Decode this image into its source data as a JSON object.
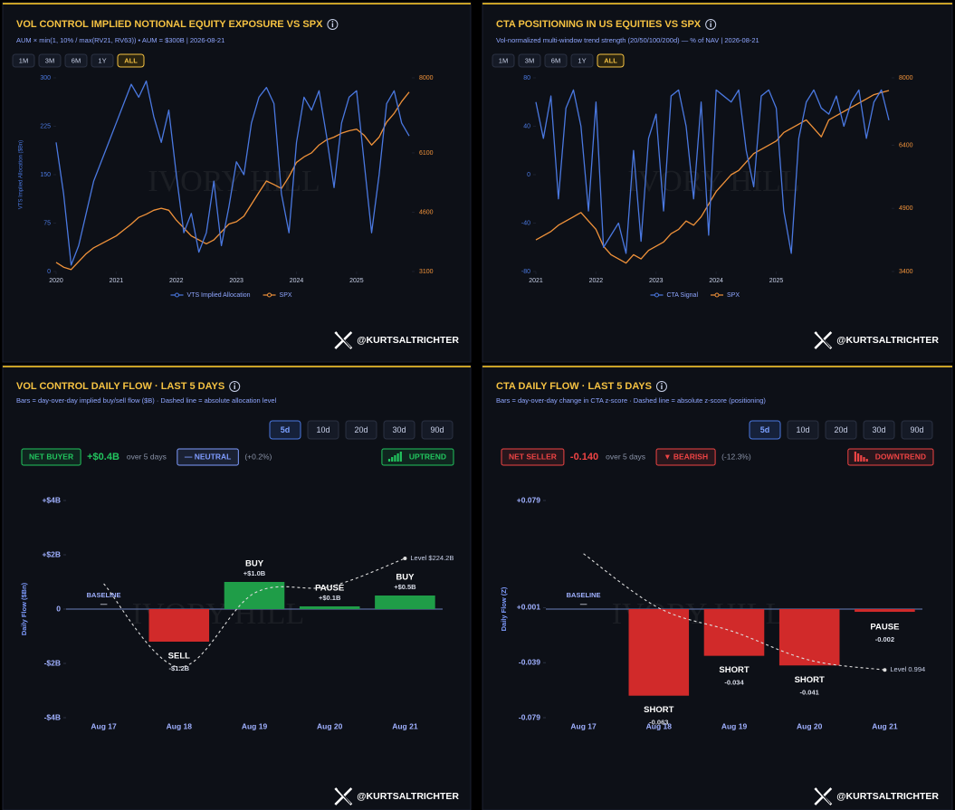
{
  "watermark": "IVORY HILL",
  "chart_data": [
    {
      "type": "line",
      "title": "VOL CONTROL IMPLIED NOTIONAL EQUITY EXPOSURE VS SPX",
      "subtitle": "AUM × min(1, 10% / max(RV21, RV63)) • AUM = $300B | 2026-08-21",
      "range_buttons": [
        "1M",
        "3M",
        "6M",
        "1Y",
        "ALL"
      ],
      "active_button": 4,
      "handle": "@KURTSALTRICHTER",
      "ylabel": "VTS Implied Allocation ($Bn)",
      "x": [
        2020,
        2020.125,
        2020.25,
        2020.375,
        2020.5,
        2020.625,
        2020.75,
        2020.875,
        2021,
        2021.125,
        2021.25,
        2021.375,
        2021.5,
        2021.625,
        2021.75,
        2021.875,
        2022,
        2022.125,
        2022.25,
        2022.375,
        2022.5,
        2022.625,
        2022.75,
        2022.875,
        2023,
        2023.125,
        2023.25,
        2023.375,
        2023.5,
        2023.625,
        2023.75,
        2023.875,
        2024,
        2024.125,
        2024.25,
        2024.375,
        2024.5,
        2024.625,
        2024.75,
        2024.875,
        2025,
        2025.125,
        2025.25,
        2025.375,
        2025.5,
        2025.625,
        2025.75,
        2025.875
      ],
      "xlim": [
        2020,
        2025.92
      ],
      "xticks": [
        2020,
        2021,
        2022,
        2023,
        2024,
        2025
      ],
      "ylim": [
        0,
        300
      ],
      "yticks": [
        0,
        75,
        150,
        225,
        300
      ],
      "y2lim": [
        3100,
        8000
      ],
      "y2ticks": [
        3100,
        4600,
        6100,
        8000
      ],
      "series": [
        {
          "name": "VTS Implied Allocation",
          "color": "#4a78e0",
          "values": [
            200,
            120,
            10,
            40,
            90,
            140,
            170,
            200,
            230,
            260,
            290,
            270,
            295,
            240,
            200,
            250,
            150,
            60,
            90,
            30,
            60,
            140,
            40,
            100,
            170,
            150,
            230,
            270,
            285,
            260,
            120,
            60,
            200,
            270,
            250,
            280,
            210,
            130,
            230,
            270,
            280,
            170,
            60,
            150,
            260,
            280,
            230,
            210
          ]
        },
        {
          "name": "SPX",
          "color": "#f0923a",
          "axis": "y2",
          "values": [
            3330,
            3210,
            3150,
            3350,
            3550,
            3700,
            3800,
            3900,
            4000,
            4150,
            4300,
            4470,
            4550,
            4650,
            4700,
            4650,
            4400,
            4200,
            4000,
            3900,
            3800,
            3900,
            4100,
            4300,
            4360,
            4500,
            4800,
            5100,
            5390,
            5300,
            5200,
            5500,
            5860,
            6000,
            6100,
            6300,
            6430,
            6500,
            6600,
            6660,
            6700,
            6550,
            6300,
            6500,
            6880,
            7100,
            7400,
            7640
          ]
        }
      ]
    },
    {
      "type": "line",
      "title": "CTA POSITIONING IN US EQUITIES VS SPX",
      "subtitle": "Vol-normalized multi-window trend strength (20/50/100/200d) — % of NAV | 2026-08-21",
      "range_buttons": [
        "1M",
        "3M",
        "6M",
        "1Y",
        "ALL"
      ],
      "active_button": 4,
      "handle": "@KURTSALTRICHTER",
      "x": [
        2021,
        2021.125,
        2021.25,
        2021.375,
        2021.5,
        2021.625,
        2021.75,
        2021.875,
        2022,
        2022.125,
        2022.25,
        2022.375,
        2022.5,
        2022.625,
        2022.75,
        2022.875,
        2023,
        2023.125,
        2023.25,
        2023.375,
        2023.5,
        2023.625,
        2023.75,
        2023.875,
        2024,
        2024.125,
        2024.25,
        2024.375,
        2024.5,
        2024.625,
        2024.75,
        2024.875,
        2025,
        2025.125,
        2025.25,
        2025.375,
        2025.5,
        2025.625,
        2025.75,
        2025.875,
        2026,
        2026.125,
        2026.25,
        2026.375,
        2026.5,
        2026.625,
        2026.75,
        2026.875
      ],
      "xlim": [
        2021,
        2026.92
      ],
      "xticks": [
        2021,
        2022,
        2023,
        2024,
        2025
      ],
      "ylim": [
        -80,
        80
      ],
      "yticks": [
        -80,
        -40,
        0,
        40,
        80
      ],
      "y2lim": [
        3400,
        8000
      ],
      "y2ticks": [
        3400,
        4900,
        6400,
        8000
      ],
      "series": [
        {
          "name": "CTA Signal",
          "color": "#4a78e0",
          "values": [
            60,
            30,
            65,
            -20,
            55,
            70,
            40,
            -30,
            60,
            -60,
            -50,
            -40,
            -65,
            20,
            -55,
            30,
            50,
            -30,
            65,
            70,
            40,
            -20,
            60,
            -50,
            70,
            65,
            60,
            70,
            20,
            -10,
            65,
            70,
            55,
            -30,
            -65,
            30,
            60,
            70,
            55,
            50,
            65,
            40,
            60,
            70,
            30,
            60,
            70,
            45
          ]
        },
        {
          "name": "SPX",
          "color": "#f0923a",
          "axis": "y2",
          "values": [
            4150,
            4250,
            4350,
            4500,
            4600,
            4700,
            4800,
            4600,
            4400,
            4000,
            3800,
            3700,
            3600,
            3800,
            3700,
            3900,
            4000,
            4100,
            4300,
            4400,
            4600,
            4500,
            4700,
            5000,
            5300,
            5500,
            5700,
            5800,
            6000,
            6200,
            6300,
            6400,
            6500,
            6700,
            6800,
            6900,
            7000,
            6800,
            6600,
            7000,
            7100,
            7200,
            7300,
            7400,
            7500,
            7600,
            7650,
            7700
          ]
        }
      ]
    },
    {
      "type": "bar",
      "title": "VOL CONTROL DAILY FLOW · LAST 5 DAYS",
      "subtitle": "Bars = day-over-day implied buy/sell flow ($B) · Dashed line = absolute allocation level",
      "range_buttons": [
        "5d",
        "10d",
        "20d",
        "30d",
        "90d"
      ],
      "active_button": 0,
      "handle": "@KURTSALTRICHTER",
      "summary": {
        "flow_label": "NET BUYER",
        "flow": "+$0.4B",
        "period": "over 5 days",
        "regime": "— NEUTRAL",
        "regime_change": "(+0.2%)",
        "trend": "UPTREND",
        "flow_color": "#22c55e",
        "regime_color": "#7f9cff",
        "trend_color": "#22c55e",
        "trend_icon": "rising"
      },
      "ylabel": "Daily Flow ($Bn)",
      "categories": [
        "Aug 17",
        "Aug 18",
        "Aug 19",
        "Aug 20",
        "Aug 21"
      ],
      "ylim": [
        -4,
        4
      ],
      "yticks": [
        {
          "value": -4,
          "label": "-$4B"
        },
        {
          "value": -2,
          "label": "-$2B"
        },
        0,
        {
          "value": 2,
          "label": "+$2B"
        },
        {
          "value": 4,
          "label": "+$4B"
        }
      ],
      "y2lim": [
        222,
        225
      ],
      "series": [
        {
          "values": [
            0,
            -1.2,
            1.0,
            0.1,
            0.5
          ],
          "value_labels": [
            "—",
            "-$1.2B",
            "+$1.0B",
            "+$0.1B",
            "+$0.5B"
          ],
          "status_labels": [
            "BASELINE",
            "SELL",
            "BUY",
            "PAUSE",
            "BUY"
          ],
          "positive_color": "#1f9d48",
          "negative_color": "#d12a2a"
        },
        {
          "axis": "y2",
          "color": "#dddddd",
          "style": "dashed",
          "values": [
            223.85,
            222.7,
            223.72,
            223.81,
            224.2
          ],
          "annotation": "Level $224.2B"
        }
      ]
    },
    {
      "type": "bar",
      "title": "CTA DAILY FLOW · LAST 5 DAYS",
      "subtitle": "Bars = day-over-day change in CTA z-score · Dashed line = absolute z-score (positioning)",
      "range_buttons": [
        "5d",
        "10d",
        "20d",
        "30d",
        "90d"
      ],
      "active_button": 0,
      "handle": "@KURTSALTRICHTER",
      "summary": {
        "flow_label": "NET SELLER",
        "flow": "-0.140",
        "period": "over 5 days",
        "regime": "▼ BEARISH",
        "regime_change": "(-12.3%)",
        "trend": "DOWNTREND",
        "flow_color": "#ef4444",
        "regime_color": "#ef4444",
        "trend_color": "#ef4444",
        "trend_icon": "falling"
      },
      "ylabel": "Daily Flow (Z)",
      "categories": [
        "Aug 17",
        "Aug 18",
        "Aug 19",
        "Aug 20",
        "Aug 21"
      ],
      "ylim": [
        -0.079,
        0.079
      ],
      "yticks": [
        -0.079,
        -0.039,
        {
          "value": 0.001,
          "label": "+0.001"
        },
        {
          "value": 0.079,
          "label": "+0.079"
        }
      ],
      "y2lim": [
        0.95,
        1.15
      ],
      "series": [
        {
          "values": [
            0,
            -0.063,
            -0.034,
            -0.041,
            -0.002
          ],
          "value_labels": [
            "—",
            "-0.063",
            "-0.034",
            "-0.041",
            "-0.002"
          ],
          "status_labels": [
            "BASELINE",
            "SHORT",
            "SHORT",
            "SHORT",
            "PAUSE"
          ],
          "positive_color": "#1f9d48",
          "negative_color": "#d12a2a"
        },
        {
          "axis": "y2",
          "color": "#dddddd",
          "style": "dashed",
          "values": [
            1.101,
            1.051,
            1.029,
            1.003,
            0.994
          ],
          "annotation": "Level 0.994"
        }
      ]
    }
  ]
}
